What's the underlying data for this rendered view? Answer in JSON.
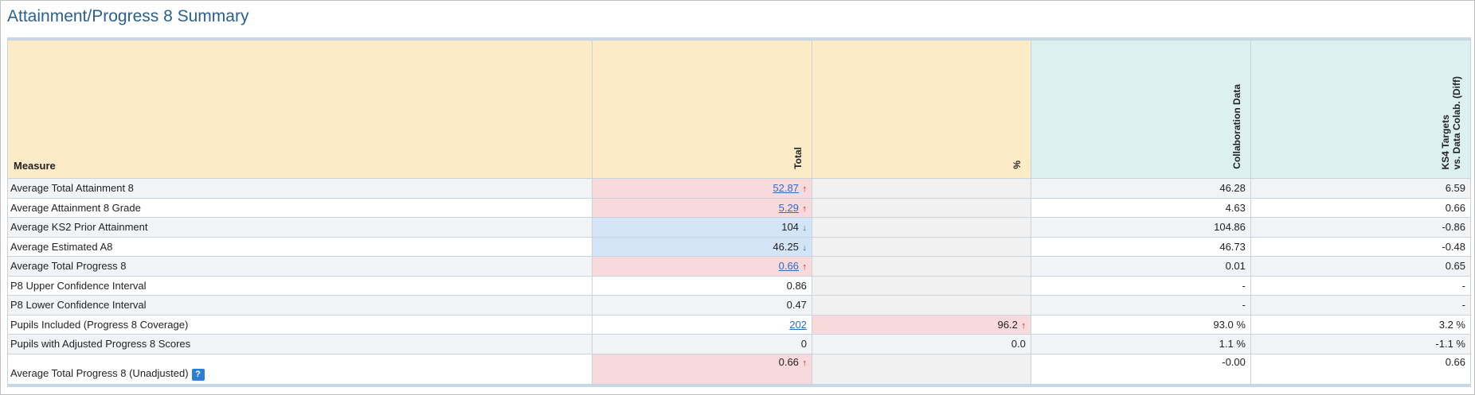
{
  "title": "Attainment/Progress 8 Summary",
  "headers": {
    "measure": "Measure",
    "total": "Total",
    "percent": "%",
    "collab": "Collaboration Data",
    "targets_line1": "KS4 Targets",
    "targets_line2": "vs. Data Colab. (Diff)"
  },
  "help_label": "?",
  "arrow_up": "↑",
  "arrow_down": "↓",
  "rows": [
    {
      "measure": "Average Total Attainment 8",
      "total": "52.87",
      "percent": "",
      "collab": "46.28",
      "diff": "6.59"
    },
    {
      "measure": "Average Attainment 8 Grade",
      "total": "5.29",
      "percent": "",
      "collab": "4.63",
      "diff": "0.66"
    },
    {
      "measure": "Average KS2 Prior Attainment",
      "total": "104",
      "percent": "",
      "collab": "104.86",
      "diff": "-0.86"
    },
    {
      "measure": "Average Estimated A8",
      "total": "46.25",
      "percent": "",
      "collab": "46.73",
      "diff": "-0.48"
    },
    {
      "measure": "Average Total Progress 8",
      "total": "0.66",
      "percent": "",
      "collab": "0.01",
      "diff": "0.65"
    },
    {
      "measure": "P8 Upper Confidence Interval",
      "total": "0.86",
      "percent": "",
      "collab": "-",
      "diff": "-"
    },
    {
      "measure": "P8 Lower Confidence Interval",
      "total": "0.47",
      "percent": "",
      "collab": "-",
      "diff": "-"
    },
    {
      "measure": "Pupils Included (Progress 8 Coverage)",
      "total": "202",
      "percent": "96.2",
      "collab": "93.0 %",
      "diff": "3.2 %"
    },
    {
      "measure": "Pupils with Adjusted Progress 8 Scores",
      "total": "0",
      "percent": "0.0",
      "collab": "1.1 %",
      "diff": "-1.1 %"
    },
    {
      "measure": "Average Total Progress 8 (Unadjusted)",
      "total": "0.66",
      "percent": "",
      "collab": "-0.00",
      "diff": "0.66"
    }
  ]
}
